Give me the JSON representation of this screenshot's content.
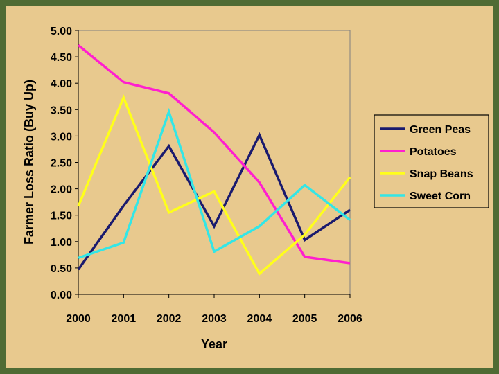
{
  "chart_data": {
    "type": "line",
    "title": "",
    "xlabel": "Year",
    "ylabel": "Farmer Loss Ratio (Buy Up)",
    "categories": [
      "2000",
      "2001",
      "2002",
      "2003",
      "2004",
      "2005",
      "2006"
    ],
    "ylim": [
      0,
      5
    ],
    "yticks": [
      "0.00",
      "0.50",
      "1.00",
      "1.50",
      "2.00",
      "2.50",
      "3.00",
      "3.50",
      "4.00",
      "4.50",
      "5.00"
    ],
    "grid": false,
    "legend_position": "right",
    "series": [
      {
        "name": "Green Peas",
        "color": "#1a1a6e",
        "values": [
          0.47,
          1.68,
          2.81,
          1.29,
          3.02,
          1.03,
          1.6
        ]
      },
      {
        "name": "Potatoes",
        "color": "#ff1fcf",
        "values": [
          4.72,
          4.02,
          3.81,
          3.07,
          2.12,
          0.71,
          0.59
        ]
      },
      {
        "name": "Snap Beans",
        "color": "#ffff1a",
        "values": [
          1.67,
          3.73,
          1.55,
          1.95,
          0.39,
          1.13,
          2.22
        ]
      },
      {
        "name": "Sweet Corn",
        "color": "#33e6e6",
        "values": [
          0.69,
          0.98,
          3.46,
          0.81,
          1.29,
          2.07,
          1.41
        ]
      }
    ]
  }
}
